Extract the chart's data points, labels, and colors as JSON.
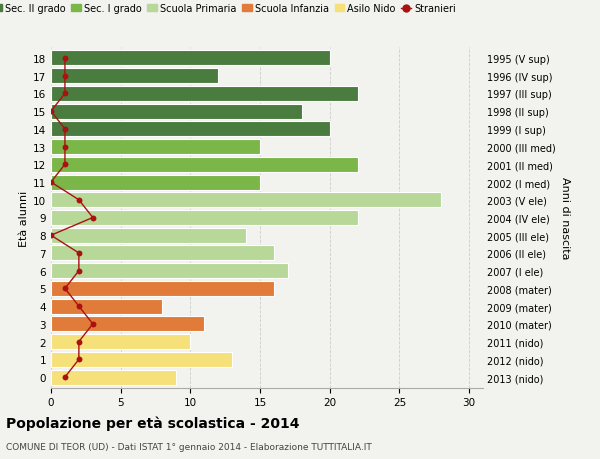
{
  "ages": [
    18,
    17,
    16,
    15,
    14,
    13,
    12,
    11,
    10,
    9,
    8,
    7,
    6,
    5,
    4,
    3,
    2,
    1,
    0
  ],
  "labels_right": [
    "1995 (V sup)",
    "1996 (IV sup)",
    "1997 (III sup)",
    "1998 (II sup)",
    "1999 (I sup)",
    "2000 (III med)",
    "2001 (II med)",
    "2002 (I med)",
    "2003 (V ele)",
    "2004 (IV ele)",
    "2005 (III ele)",
    "2006 (II ele)",
    "2007 (I ele)",
    "2008 (mater)",
    "2009 (mater)",
    "2010 (mater)",
    "2011 (nido)",
    "2012 (nido)",
    "2013 (nido)"
  ],
  "bar_values": [
    20,
    12,
    22,
    18,
    20,
    15,
    22,
    15,
    28,
    22,
    14,
    16,
    17,
    16,
    8,
    11,
    10,
    13,
    9
  ],
  "bar_colors": [
    "#4a7c3f",
    "#4a7c3f",
    "#4a7c3f",
    "#4a7c3f",
    "#4a7c3f",
    "#7ab648",
    "#7ab648",
    "#7ab648",
    "#b8d89a",
    "#b8d89a",
    "#b8d89a",
    "#b8d89a",
    "#b8d89a",
    "#e07b39",
    "#e07b39",
    "#e07b39",
    "#f5e07a",
    "#f5e07a",
    "#f5e07a"
  ],
  "stranieri_values": [
    1,
    1,
    1,
    0,
    1,
    1,
    1,
    0,
    2,
    3,
    0,
    2,
    2,
    1,
    2,
    3,
    2,
    2,
    1
  ],
  "legend_labels": [
    "Sec. II grado",
    "Sec. I grado",
    "Scuola Primaria",
    "Scuola Infanzia",
    "Asilo Nido",
    "Stranieri"
  ],
  "legend_colors": [
    "#4a7c3f",
    "#7ab648",
    "#b8d89a",
    "#e07b39",
    "#f5e07a",
    "#cc2222"
  ],
  "ylabel": "Età alunni",
  "ylabel_right": "Anni di nascita",
  "title": "Popolazione per età scolastica - 2014",
  "subtitle": "COMUNE DI TEOR (UD) - Dati ISTAT 1° gennaio 2014 - Elaborazione TUTTITALIA.IT",
  "xlim": [
    0,
    31
  ],
  "xticks": [
    0,
    5,
    10,
    15,
    20,
    25,
    30
  ],
  "bg_color": "#f2f2ee",
  "stranieri_color": "#aa1111",
  "grid_color": "#cccccc"
}
